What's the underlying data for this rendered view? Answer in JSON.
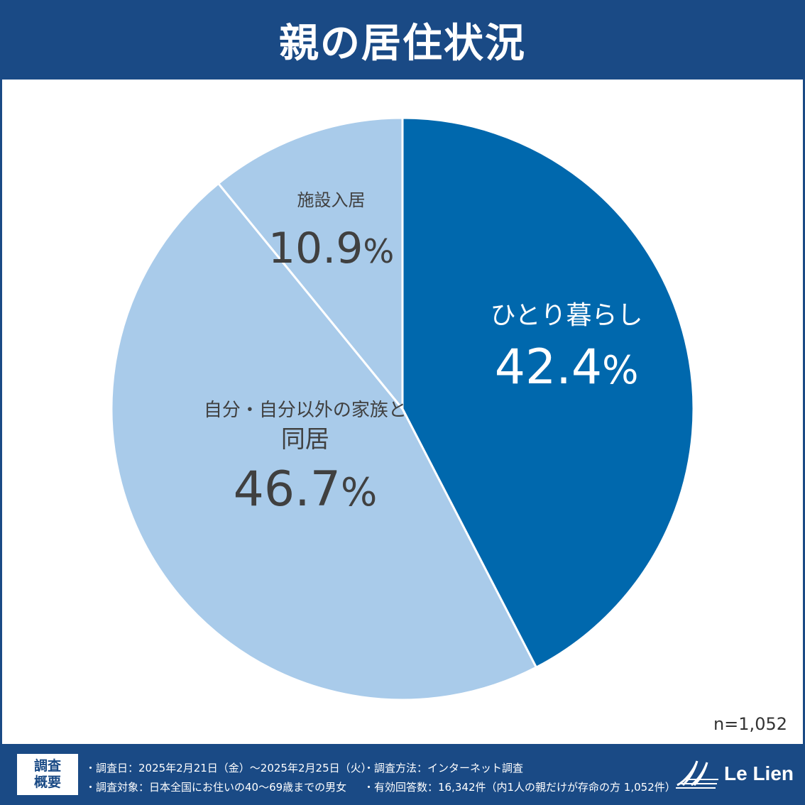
{
  "header": {
    "title": "親の居住状況"
  },
  "chart_data": {
    "type": "pie",
    "title": "親の居住状況",
    "note": "n=1,052",
    "slices": [
      {
        "label": "ひとり暮らし",
        "value": 42.4,
        "value_label": "42.4",
        "color": "#0068ad",
        "text_color": "#ffffff"
      },
      {
        "label": "自分・自分以外の家族と 同居",
        "value": 46.7,
        "value_label": "46.7",
        "color": "#a9cbea",
        "text_color": "#404040"
      },
      {
        "label": "施設入居",
        "value": 10.9,
        "value_label": "10.9",
        "color": "#a9cbea",
        "text_color": "#404040"
      }
    ],
    "unit": "%"
  },
  "survey": {
    "box_line1": "調査",
    "box_line2": "概要",
    "date": "・調査日：2025年2月21日（金）～2025年2月25日（火）",
    "method": "・調査方法：インターネット調査",
    "target": "・調査対象：日本全国にお住いの40～69歳までの男女",
    "responses": "・有効回答数：16,342件（内1人の親だけが存命の方 1,052件）"
  },
  "brand": {
    "name": "Le Lien"
  }
}
